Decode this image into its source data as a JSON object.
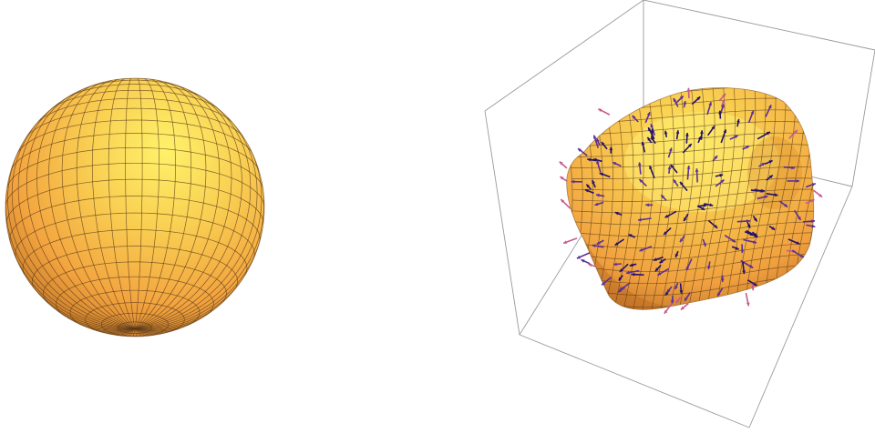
{
  "scene": {
    "panels": [
      {
        "name": "sphere-render",
        "surface": "sphere",
        "mesh": "quad-grid"
      },
      {
        "name": "deformed-shape-render",
        "surface": "deformed-blob",
        "mesh": "quad-grid",
        "bounding_box": true,
        "vector_field": true
      }
    ]
  },
  "colors": {
    "surface_light": "#fdea5e",
    "surface_mid": "#f6b247",
    "surface_dark": "#c87c26",
    "mesh_line": "#5a3a1a",
    "box_line": "#9a9a9a",
    "arrow_dark": "#22116b",
    "arrow_mid": "#5a2f9a",
    "arrow_light": "#c65a8c"
  },
  "icons": {
    "arrow_glyph": "vector-arrow"
  }
}
